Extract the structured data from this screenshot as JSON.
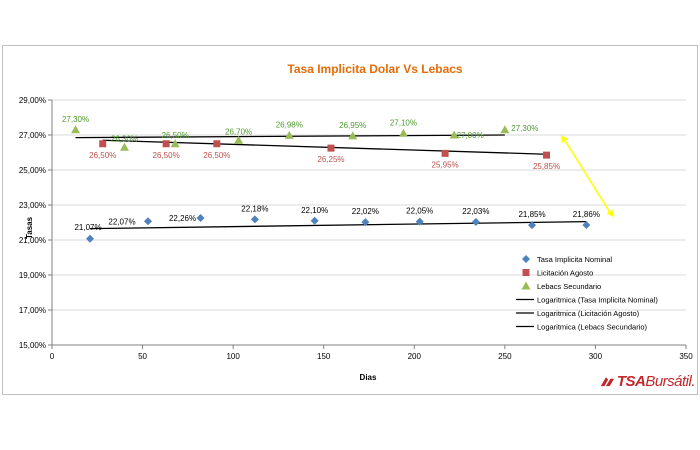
{
  "colors": {
    "nominal": "#4f81bd",
    "agosto": "#c0504d",
    "secundario": "#9bbb59",
    "trend": "#000000",
    "title": "#e46c0a",
    "arrow": "#ffff00",
    "grid": "#d9d9d9",
    "logo": "#c0282b"
  },
  "logo": {
    "brand_bold": "TSA",
    "brand_light": "Bursátil."
  },
  "chart_data": {
    "type": "scatter",
    "title": "Tasa Implicita Dolar Vs Lebacs",
    "xlabel": "Dias",
    "ylabel": "Tasas",
    "xlim": [
      0,
      350
    ],
    "ylim": [
      15,
      29
    ],
    "x_ticks": [
      0,
      50,
      100,
      150,
      200,
      250,
      300,
      350
    ],
    "y_ticks": [
      15,
      17,
      19,
      21,
      23,
      25,
      27,
      29
    ],
    "y_tick_labels": [
      "15,00%",
      "17,00%",
      "19,00%",
      "21,00%",
      "23,00%",
      "25,00%",
      "27,00%",
      "29,00%"
    ],
    "grid": "horizontal",
    "legend_position": "bottom-right",
    "series": [
      {
        "name": "Tasa Implicita  Nominal",
        "marker": "diamond",
        "points": [
          {
            "x": 21,
            "y": 21.07,
            "label": "21,07%"
          },
          {
            "x": 53,
            "y": 22.07,
            "label": "22,07%"
          },
          {
            "x": 82,
            "y": 22.26,
            "label": "22,26%"
          },
          {
            "x": 112,
            "y": 22.18,
            "label": "22,18%"
          },
          {
            "x": 145,
            "y": 22.1,
            "label": "22,10%"
          },
          {
            "x": 173,
            "y": 22.02,
            "label": "22,02%"
          },
          {
            "x": 203,
            "y": 22.05,
            "label": "22,05%"
          },
          {
            "x": 234,
            "y": 22.03,
            "label": "22,03%"
          },
          {
            "x": 265,
            "y": 21.85,
            "label": "21,85%"
          },
          {
            "x": 295,
            "y": 21.86,
            "label": "21,86%"
          }
        ]
      },
      {
        "name": "Licitación Agosto",
        "marker": "square",
        "points": [
          {
            "x": 28,
            "y": 26.5,
            "label": "26,50%"
          },
          {
            "x": 63,
            "y": 26.5,
            "label": "26,50%"
          },
          {
            "x": 91,
            "y": 26.5,
            "label": "26,50%"
          },
          {
            "x": 154,
            "y": 26.25,
            "label": "26,25%"
          },
          {
            "x": 217,
            "y": 25.95,
            "label": "25,95%"
          },
          {
            "x": 273,
            "y": 25.85,
            "label": "25,85%"
          }
        ]
      },
      {
        "name": "Lebacs Secundario",
        "marker": "triangle",
        "points": [
          {
            "x": 13,
            "y": 27.3,
            "label": "27,30%"
          },
          {
            "x": 40,
            "y": 26.3,
            "label": "26,30%"
          },
          {
            "x": 68,
            "y": 26.5,
            "label": "26,50%"
          },
          {
            "x": 103,
            "y": 26.7,
            "label": "26,70%"
          },
          {
            "x": 131,
            "y": 26.98,
            "label": "26,98%"
          },
          {
            "x": 166,
            "y": 26.95,
            "label": "26,95%"
          },
          {
            "x": 194,
            "y": 27.1,
            "label": "27,10%"
          },
          {
            "x": 222,
            "y": 27.0,
            "label": "27,00%"
          },
          {
            "x": 250,
            "y": 27.3,
            "label": "27,30%"
          }
        ]
      }
    ],
    "trendlines": [
      {
        "name": "Logaritmica (Tasa  Implicita Nominal)",
        "of": "Tasa Implicita  Nominal",
        "from": [
          21,
          21.65
        ],
        "to": [
          295,
          22.05
        ]
      },
      {
        "name": "Logaritmica (Licitación Agosto)",
        "of": "Licitación Agosto",
        "from": [
          28,
          26.7
        ],
        "to": [
          273,
          25.9
        ]
      },
      {
        "name": "Logaritmica (Lebacs Secundario)",
        "of": "Lebacs Secundario",
        "from": [
          13,
          26.85
        ],
        "to": [
          250,
          27.0
        ]
      }
    ]
  }
}
